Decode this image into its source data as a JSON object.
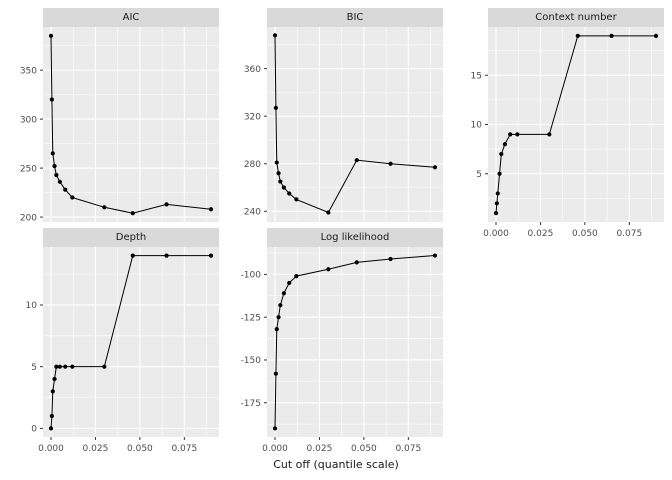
{
  "chart_data": {
    "type": "line",
    "title": "",
    "xlabel": "Cut off (quantile scale)",
    "x": [
      0,
      0.0005,
      0.001,
      0.002,
      0.003,
      0.005,
      0.008,
      0.012,
      0.03,
      0.046,
      0.065,
      0.09
    ],
    "x_ticks": [
      0,
      0.025,
      0.05,
      0.075
    ],
    "x_tick_labels": [
      "0.000",
      "0.025",
      "0.050",
      "0.075"
    ],
    "xlim": [
      -0.0045,
      0.0945
    ],
    "grid": "on",
    "legend": "none",
    "facets": [
      {
        "id": "aic",
        "label": "AIC",
        "y": [
          385,
          320,
          265,
          252,
          243,
          236,
          228,
          220,
          210,
          204,
          213,
          208
        ],
        "yticks": [
          200,
          250,
          300,
          350
        ],
        "ytick_labels": [
          "200",
          "250",
          "300",
          "350"
        ],
        "ylim": [
          195,
          394
        ]
      },
      {
        "id": "bic",
        "label": "BIC",
        "y": [
          388,
          327,
          281,
          272,
          265,
          260,
          255,
          250,
          239,
          283,
          280,
          277
        ],
        "yticks": [
          240,
          280,
          320,
          360
        ],
        "ytick_labels": [
          "240",
          "280",
          "320",
          "360"
        ],
        "ylim": [
          231,
          395
        ]
      },
      {
        "id": "context",
        "label": "Context number",
        "y": [
          1,
          2,
          3,
          5,
          7,
          8,
          9,
          9,
          9,
          19,
          19,
          19
        ],
        "yticks": [
          5,
          10,
          15
        ],
        "ytick_labels": [
          "5",
          "10",
          "15"
        ],
        "ylim": [
          0.1,
          19.9
        ]
      },
      {
        "id": "depth",
        "label": "Depth",
        "y": [
          0,
          1,
          3,
          4,
          5,
          5,
          5,
          5,
          5,
          14,
          14,
          14
        ],
        "yticks": [
          0,
          5,
          10
        ],
        "ytick_labels": [
          "0",
          "5",
          "10"
        ],
        "ylim": [
          -0.7,
          14.7
        ]
      },
      {
        "id": "loglik",
        "label": "Log likelihood",
        "y": [
          -190,
          -158,
          -132,
          -125,
          -118,
          -111,
          -105,
          -101,
          -97,
          -93,
          -91,
          -89
        ],
        "yticks": [
          -175,
          -150,
          -125,
          -100
        ],
        "ytick_labels": [
          "-175",
          "-150",
          "-125",
          "-100"
        ],
        "ylim": [
          -195,
          -84
        ]
      }
    ],
    "colors": {
      "panel_bg": "#EBEBEB",
      "strip_bg": "#D9D9D9",
      "grid": "#FFFFFF",
      "line": "#000000",
      "point": "#000000",
      "axis_text": "#4D4D4D",
      "strip_text": "#1A1A1A",
      "tick": "#333333"
    }
  }
}
